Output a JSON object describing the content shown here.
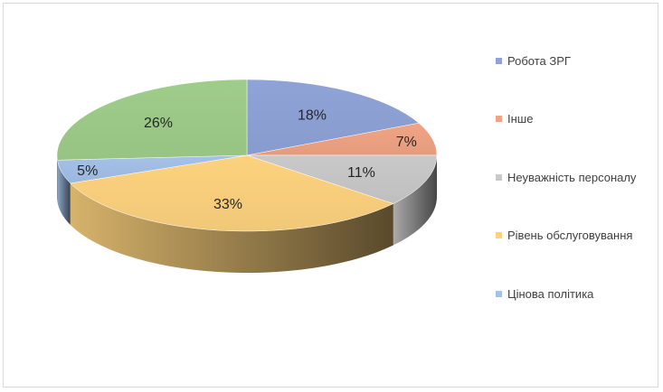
{
  "chart_data": {
    "type": "pie",
    "title": "",
    "slices": [
      {
        "label": "Робота ЗРГ",
        "value": 18,
        "data_label": "18%",
        "color": "#8fa3d8"
      },
      {
        "label": "Інше",
        "value": 7,
        "data_label": "7%",
        "color": "#f0a484"
      },
      {
        "label": "Неуважність персоналу",
        "value": 11,
        "data_label": "11%",
        "color": "#c9c9c9"
      },
      {
        "label": "Рівень обслуговування",
        "value": 33,
        "data_label": "33%",
        "color": "#fdd27e"
      },
      {
        "label": "Цінова політика",
        "value": 5,
        "data_label": "5%",
        "color": "#a4c1e8"
      },
      {
        "label": "",
        "value": 26,
        "data_label": "26%",
        "color": "#9fcd8a"
      }
    ],
    "legend_position": "right",
    "style": "3d"
  }
}
